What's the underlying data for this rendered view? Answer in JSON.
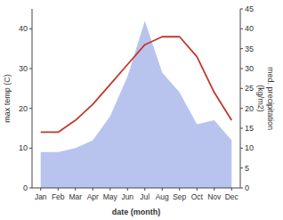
{
  "chart_data": {
    "type": "line",
    "categories": [
      "Jan",
      "Feb",
      "Mar",
      "Apr",
      "May",
      "Jun",
      "Jul",
      "Aug",
      "Sep",
      "Oct",
      "Nov",
      "Dec"
    ],
    "series": [
      {
        "type": "area",
        "color": "#b8c4ee",
        "axis": "y2",
        "values": [
          9,
          9,
          10,
          12,
          18,
          28,
          42,
          29,
          24,
          16,
          17,
          12
        ]
      },
      {
        "type": "line",
        "color": "#c0392b",
        "values": [
          14,
          14,
          17,
          21,
          26,
          31,
          36,
          38,
          38,
          33,
          24,
          17
        ]
      }
    ],
    "xlabel": "date (month)",
    "ylabel": "max temp (C)",
    "y2label": "med. precipitation\n(kg/m2)",
    "ylim": [
      0,
      45
    ],
    "yticks": [
      0,
      10,
      20,
      30,
      40
    ],
    "y2lim": [
      0,
      45
    ],
    "y2ticks": [
      0,
      5,
      10,
      15,
      20,
      25,
      30,
      35,
      40,
      45
    ],
    "grid": false
  }
}
